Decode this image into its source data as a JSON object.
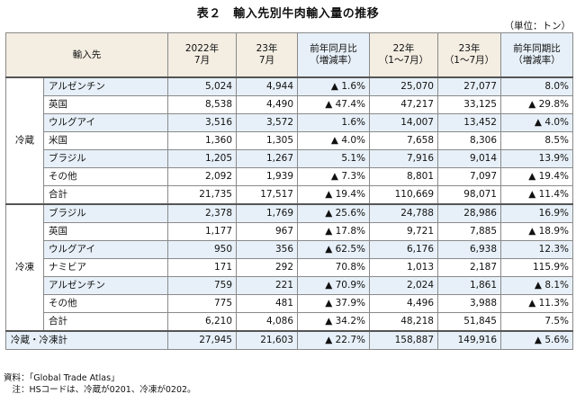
{
  "title": "表２　輸入先別牛肉輸入量の推移",
  "unit": "（単位：トン）",
  "header": {
    "source": "輸入先",
    "c1": "2022年\n7月",
    "c2": "23年\n7月",
    "c3": "前年同月比\n（増減率）",
    "c4": "22年\n（1〜7月）",
    "c5": "23年\n（1〜7月）",
    "c6": "前年同期比\n（増減率）"
  },
  "groups": [
    {
      "label": "冷蔵",
      "rows": [
        [
          "アルゼンチン",
          "5,024",
          "4,944",
          "▲ 1.6%",
          "25,070",
          "27,077",
          "8.0%"
        ],
        [
          "英国",
          "8,538",
          "4,490",
          "▲ 47.4%",
          "47,217",
          "33,125",
          "▲ 29.8%"
        ],
        [
          "ウルグアイ",
          "3,516",
          "3,572",
          "1.6%",
          "14,007",
          "13,452",
          "▲ 4.0%"
        ],
        [
          "米国",
          "1,360",
          "1,305",
          "▲ 4.0%",
          "7,658",
          "8,306",
          "8.5%"
        ],
        [
          "ブラジル",
          "1,205",
          "1,267",
          "5.1%",
          "7,916",
          "9,014",
          "13.9%"
        ],
        [
          "その他",
          "2,092",
          "1,939",
          "▲ 7.3%",
          "8,801",
          "7,097",
          "▲ 19.4%"
        ]
      ],
      "total": [
        "合計",
        "21,735",
        "17,517",
        "▲ 19.4%",
        "110,669",
        "98,071",
        "▲ 11.4%"
      ]
    },
    {
      "label": "冷凍",
      "rows": [
        [
          "ブラジル",
          "2,378",
          "1,769",
          "▲ 25.6%",
          "24,788",
          "28,986",
          "16.9%"
        ],
        [
          "英国",
          "1,177",
          "967",
          "▲ 17.8%",
          "9,721",
          "7,885",
          "▲ 18.9%"
        ],
        [
          "ウルグアイ",
          "950",
          "356",
          "▲ 62.5%",
          "6,176",
          "6,938",
          "12.3%"
        ],
        [
          "ナミビア",
          "171",
          "292",
          "70.8%",
          "1,013",
          "2,187",
          "115.9%"
        ],
        [
          "アルゼンチン",
          "759",
          "221",
          "▲ 70.9%",
          "2,024",
          "1,861",
          "▲ 8.1%"
        ],
        [
          "その他",
          "775",
          "481",
          "▲ 37.9%",
          "4,496",
          "3,988",
          "▲ 11.3%"
        ]
      ],
      "total": [
        "合計",
        "6,210",
        "4,086",
        "▲ 34.2%",
        "48,218",
        "51,845",
        "7.5%"
      ]
    }
  ],
  "grand_total": [
    "冷蔵・冷凍計",
    "27,945",
    "21,603",
    "▲ 22.7%",
    "158,887",
    "149,916",
    "▲ 5.6%"
  ],
  "notes": [
    "資料：「Global Trade Atlas」",
    "　注：HSコードは、冷蔵が0201、冷凍が0202。"
  ]
}
